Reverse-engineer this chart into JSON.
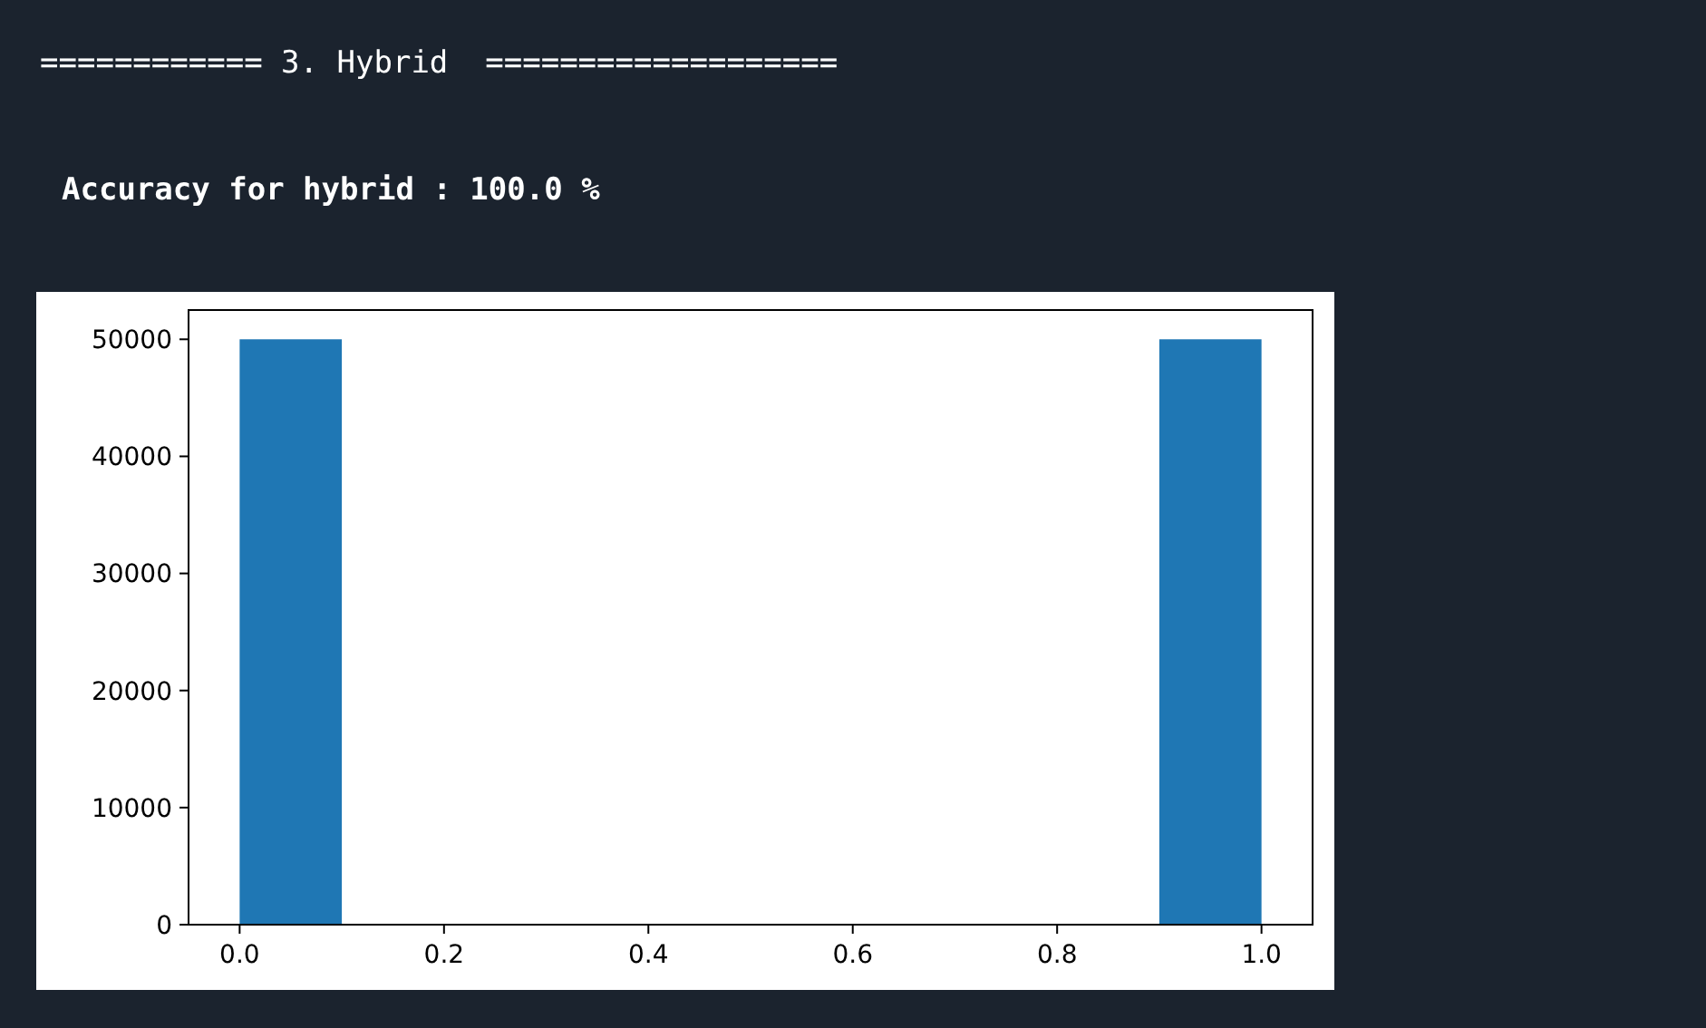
{
  "chart_data": {
    "type": "histogram",
    "title": "============ 3. Hybrid  ===================",
    "subtitle": "Accuracy for hybrid : 100.0 %",
    "bins": [
      0,
      0.1,
      0.2,
      0.3,
      0.4,
      0.5,
      0.6,
      0.7,
      0.8,
      0.9,
      1.0
    ],
    "values": [
      50000,
      0,
      0,
      0,
      0,
      0,
      0,
      0,
      0,
      50000
    ],
    "color": "#1f77b4",
    "xlim": [
      -0.05,
      1.05
    ],
    "xticks": [
      {
        "value": 0,
        "label": "0.0"
      },
      0.2,
      0.4,
      0.6,
      0.8,
      {
        "value": 1,
        "label": "1.0"
      }
    ],
    "ylim": [
      0,
      52500
    ],
    "yticks": [
      0,
      10000,
      20000,
      30000,
      40000,
      50000
    ]
  }
}
